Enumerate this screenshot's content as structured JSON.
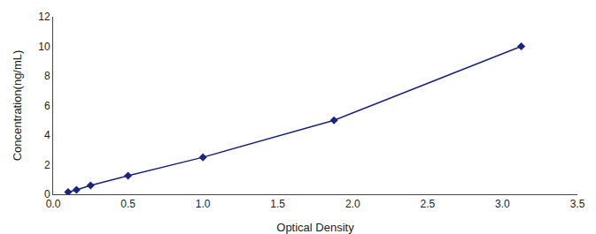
{
  "chart_data": {
    "type": "line",
    "xlabel": "Optical Density",
    "ylabel": "Concentration(ng/mL)",
    "x": [
      0.1,
      0.156,
      0.25,
      0.5,
      1.0,
      1.875,
      3.125
    ],
    "values": [
      0.15,
      0.3,
      0.6,
      1.25,
      2.5,
      5.0,
      10.0
    ],
    "color": "#1a237e",
    "marker": "diamond",
    "line_style": "solid",
    "xlim": [
      0,
      3.5
    ],
    "ylim": [
      0,
      12
    ],
    "xticks": [
      {
        "value": 0,
        "label": "0.0"
      },
      0.5,
      {
        "value": 1,
        "label": "1.0"
      },
      1.5,
      {
        "value": 2,
        "label": "2.0"
      },
      2.5,
      {
        "value": 3,
        "label": "3.0"
      },
      3.5
    ],
    "yticks": [
      0,
      2,
      4,
      6,
      8,
      10,
      12
    ],
    "grid": false
  }
}
